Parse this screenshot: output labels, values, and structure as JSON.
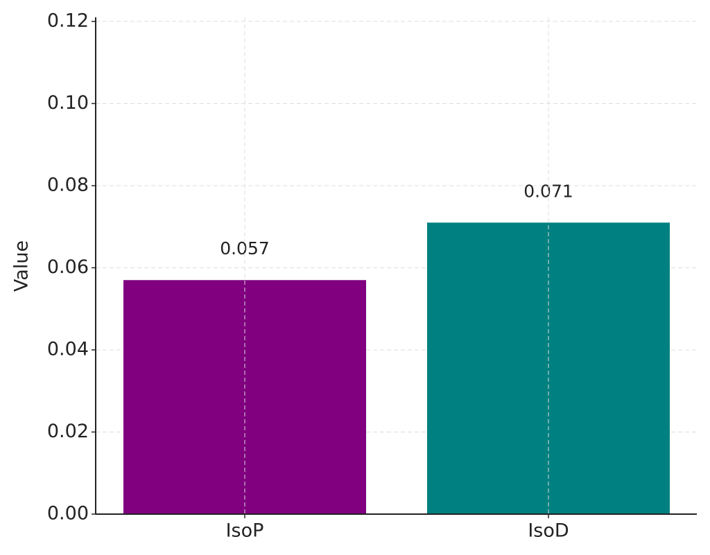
{
  "chart_data": {
    "type": "bar",
    "y_label": "Value",
    "categories": [
      "IsoP",
      "IsoD"
    ],
    "values": [
      0.057,
      0.071
    ],
    "colors": [
      "#800080",
      "#008080"
    ],
    "ylim": [
      0,
      0.121
    ],
    "yticks": [
      {
        "value": 0,
        "label": "0.00"
      },
      0.02,
      0.04,
      0.06,
      0.08,
      {
        "value": 0.1,
        "label": "0.10"
      },
      0.12
    ],
    "grid": true
  }
}
